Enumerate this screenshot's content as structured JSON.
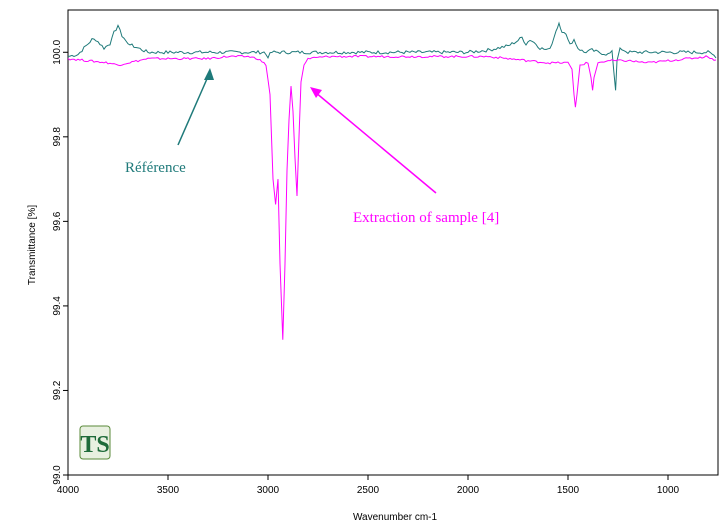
{
  "chart_data": {
    "type": "line",
    "title": "",
    "xlabel": "Wavenumber cm-1",
    "ylabel": "Transmittance [%]",
    "xlim": [
      4000,
      750
    ],
    "ylim": [
      99.0,
      100.1
    ],
    "x_reversed": true,
    "grid": false,
    "xticks": [
      4000,
      3500,
      3000,
      2500,
      2000,
      1500,
      1000
    ],
    "xtick_labels": [
      "4000",
      "3500",
      "3000",
      "2500",
      "2000",
      "1500",
      "1000"
    ],
    "yticks": [
      99.0,
      99.2,
      99.4,
      99.6,
      99.8,
      100.0
    ],
    "ytick_labels": [
      "99.0",
      "99.2",
      "99.4",
      "99.6",
      "99.8",
      "100.0"
    ],
    "series": [
      {
        "name": "Référence",
        "color": "#1f7a7a",
        "points": [
          [
            4000,
            99.99
          ],
          [
            3950,
            99.995
          ],
          [
            3920,
            100.01
          ],
          [
            3880,
            100.03
          ],
          [
            3860,
            100.03
          ],
          [
            3840,
            100.02
          ],
          [
            3820,
            100.01
          ],
          [
            3790,
            100.02
          ],
          [
            3770,
            100.05
          ],
          [
            3750,
            100.06
          ],
          [
            3730,
            100.04
          ],
          [
            3700,
            100.02
          ],
          [
            3650,
            100.01
          ],
          [
            3600,
            100.0
          ],
          [
            3500,
            100.0
          ],
          [
            3400,
            100.0
          ],
          [
            3300,
            100.0
          ],
          [
            3200,
            100.0
          ],
          [
            3100,
            100.0
          ],
          [
            3020,
            100.0
          ],
          [
            3000,
            99.99
          ],
          [
            2980,
            100.0
          ],
          [
            2900,
            100.0
          ],
          [
            2800,
            100.0
          ],
          [
            2700,
            100.0
          ],
          [
            2600,
            100.0
          ],
          [
            2500,
            100.0
          ],
          [
            2400,
            100.0
          ],
          [
            2300,
            100.0
          ],
          [
            2200,
            100.0
          ],
          [
            2100,
            100.0
          ],
          [
            2000,
            100.0
          ],
          [
            1900,
            100.005
          ],
          [
            1800,
            100.015
          ],
          [
            1760,
            100.025
          ],
          [
            1730,
            100.035
          ],
          [
            1710,
            100.02
          ],
          [
            1690,
            100.03
          ],
          [
            1660,
            100.02
          ],
          [
            1640,
            100.01
          ],
          [
            1600,
            100.005
          ],
          [
            1580,
            100.02
          ],
          [
            1560,
            100.05
          ],
          [
            1545,
            100.07
          ],
          [
            1530,
            100.05
          ],
          [
            1510,
            100.04
          ],
          [
            1490,
            100.02
          ],
          [
            1470,
            100.03
          ],
          [
            1450,
            100.01
          ],
          [
            1420,
            100.0
          ],
          [
            1380,
            100.005
          ],
          [
            1350,
            100.0
          ],
          [
            1300,
            99.995
          ],
          [
            1280,
            100.0
          ],
          [
            1262,
            99.91
          ],
          [
            1255,
            99.98
          ],
          [
            1240,
            100.01
          ],
          [
            1200,
            100.0
          ],
          [
            1100,
            100.0
          ],
          [
            1000,
            100.0
          ],
          [
            900,
            100.0
          ],
          [
            800,
            100.0
          ],
          [
            760,
            99.99
          ]
        ]
      },
      {
        "name": "Extraction of sample [4]",
        "color": "#ff00ff",
        "points": [
          [
            4000,
            99.985
          ],
          [
            3900,
            99.98
          ],
          [
            3800,
            99.975
          ],
          [
            3750,
            99.97
          ],
          [
            3700,
            99.975
          ],
          [
            3600,
            99.985
          ],
          [
            3500,
            99.985
          ],
          [
            3400,
            99.985
          ],
          [
            3300,
            99.985
          ],
          [
            3200,
            99.99
          ],
          [
            3100,
            99.99
          ],
          [
            3050,
            99.985
          ],
          [
            3010,
            99.97
          ],
          [
            2990,
            99.9
          ],
          [
            2975,
            99.7
          ],
          [
            2962,
            99.64
          ],
          [
            2950,
            99.7
          ],
          [
            2940,
            99.5
          ],
          [
            2926,
            99.32
          ],
          [
            2915,
            99.5
          ],
          [
            2905,
            99.72
          ],
          [
            2895,
            99.84
          ],
          [
            2885,
            99.92
          ],
          [
            2875,
            99.86
          ],
          [
            2865,
            99.75
          ],
          [
            2855,
            99.66
          ],
          [
            2845,
            99.8
          ],
          [
            2835,
            99.93
          ],
          [
            2820,
            99.97
          ],
          [
            2800,
            99.985
          ],
          [
            2700,
            99.99
          ],
          [
            2600,
            99.99
          ],
          [
            2500,
            99.99
          ],
          [
            2400,
            99.99
          ],
          [
            2300,
            99.99
          ],
          [
            2200,
            99.99
          ],
          [
            2100,
            99.99
          ],
          [
            2000,
            99.99
          ],
          [
            1900,
            99.99
          ],
          [
            1800,
            99.985
          ],
          [
            1700,
            99.98
          ],
          [
            1600,
            99.975
          ],
          [
            1500,
            99.975
          ],
          [
            1480,
            99.96
          ],
          [
            1470,
            99.9
          ],
          [
            1463,
            99.87
          ],
          [
            1455,
            99.9
          ],
          [
            1440,
            99.97
          ],
          [
            1400,
            99.975
          ],
          [
            1385,
            99.94
          ],
          [
            1377,
            99.91
          ],
          [
            1370,
            99.94
          ],
          [
            1350,
            99.975
          ],
          [
            1300,
            99.98
          ],
          [
            1200,
            99.98
          ],
          [
            1100,
            99.975
          ],
          [
            1000,
            99.98
          ],
          [
            900,
            99.985
          ],
          [
            800,
            99.99
          ],
          [
            760,
            99.98
          ]
        ]
      }
    ],
    "annotations": [
      {
        "text": "Référence",
        "color": "#1f7a7a",
        "points_to": [
          3300,
          99.995
        ]
      },
      {
        "text": "Extraction of sample [4]",
        "color": "#ff00ff",
        "points_to": [
          2820,
          99.92
        ]
      }
    ],
    "logo_text": "TS"
  }
}
